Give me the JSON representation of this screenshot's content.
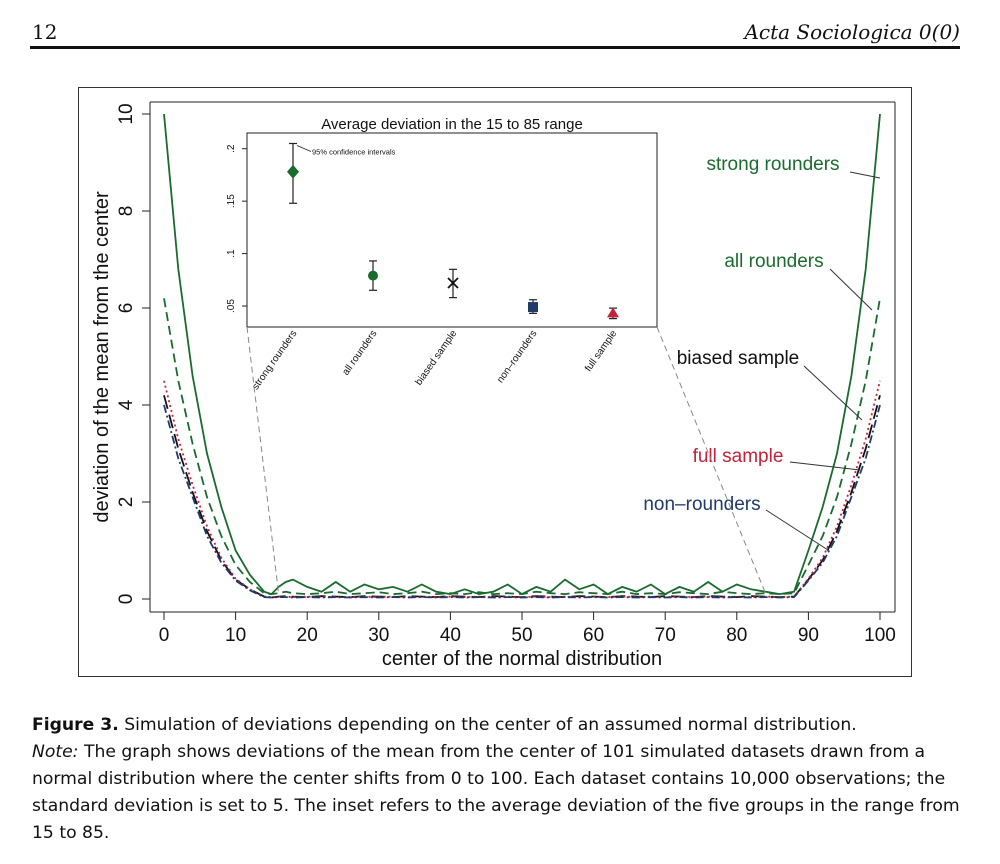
{
  "header": {
    "page_number": "12",
    "journal": "Acta Sociologica 0(0)"
  },
  "figure": {
    "label": "Figure 3.",
    "caption": "Simulation of deviations depending on the center of an assumed normal distribution.",
    "note_label": "Note:",
    "note": "The graph shows deviations of the mean from the center of 101 simulated datasets drawn from a normal distribution where the center shifts from 0 to 100. Each dataset contains 10,000 observations; the standard deviation is set to 5. The inset refers to the average deviation of the five groups in the range from 15 to 85."
  },
  "chart_data": [
    {
      "type": "line",
      "xlabel": "center of the normal distribution",
      "ylabel": "deviation of the mean from the center",
      "xlim": [
        0,
        100
      ],
      "ylim": [
        0,
        10
      ],
      "xticks": [
        0,
        10,
        20,
        30,
        40,
        50,
        60,
        70,
        80,
        90,
        100
      ],
      "yticks": [
        0,
        2,
        4,
        6,
        8,
        10
      ],
      "grid": false,
      "x": [
        0,
        2,
        4,
        6,
        8,
        10,
        12,
        14,
        15,
        16,
        17,
        18,
        20,
        22,
        24,
        26,
        28,
        30,
        32,
        34,
        36,
        38,
        40,
        42,
        44,
        46,
        48,
        50,
        52,
        54,
        56,
        58,
        60,
        62,
        64,
        66,
        68,
        70,
        72,
        74,
        76,
        78,
        80,
        82,
        84,
        86,
        88,
        90,
        92,
        94,
        96,
        98,
        100
      ],
      "series": [
        {
          "name": "strong rounders",
          "style": "solid",
          "color": "#1a6b2e",
          "values": [
            10,
            6.8,
            4.6,
            3.0,
            1.9,
            1.0,
            0.5,
            0.15,
            0.1,
            0.25,
            0.35,
            0.4,
            0.25,
            0.15,
            0.35,
            0.15,
            0.3,
            0.2,
            0.25,
            0.15,
            0.3,
            0.15,
            0.1,
            0.2,
            0.1,
            0.15,
            0.3,
            0.1,
            0.25,
            0.15,
            0.4,
            0.2,
            0.3,
            0.1,
            0.25,
            0.15,
            0.3,
            0.1,
            0.25,
            0.15,
            0.35,
            0.15,
            0.3,
            0.2,
            0.15,
            0.1,
            0.15,
            1.0,
            1.9,
            3.0,
            4.6,
            6.8,
            10
          ]
        },
        {
          "name": "all rounders",
          "style": "dashed",
          "color": "#1a6b2e",
          "values": [
            6.2,
            4.5,
            3.2,
            2.1,
            1.3,
            0.7,
            0.35,
            0.12,
            0.1,
            0.12,
            0.15,
            0.12,
            0.1,
            0.12,
            0.15,
            0.1,
            0.12,
            0.14,
            0.1,
            0.12,
            0.15,
            0.1,
            0.12,
            0.1,
            0.14,
            0.1,
            0.12,
            0.1,
            0.15,
            0.12,
            0.1,
            0.14,
            0.12,
            0.1,
            0.15,
            0.1,
            0.12,
            0.1,
            0.14,
            0.12,
            0.1,
            0.15,
            0.12,
            0.1,
            0.12,
            0.1,
            0.12,
            0.7,
            1.3,
            2.1,
            3.2,
            4.5,
            6.2
          ]
        },
        {
          "name": "biased sample",
          "style": "longdash",
          "color": "#111111",
          "values": [
            4.2,
            3.1,
            2.2,
            1.4,
            0.8,
            0.4,
            0.2,
            0.05,
            0.03,
            0.05,
            0.06,
            0.05,
            0.04,
            0.06,
            0.05,
            0.04,
            0.06,
            0.05,
            0.04,
            0.06,
            0.05,
            0.04,
            0.06,
            0.05,
            0.04,
            0.06,
            0.05,
            0.04,
            0.06,
            0.05,
            0.04,
            0.06,
            0.05,
            0.04,
            0.06,
            0.05,
            0.04,
            0.06,
            0.05,
            0.04,
            0.06,
            0.05,
            0.04,
            0.06,
            0.05,
            0.04,
            0.05,
            0.4,
            0.8,
            1.4,
            2.2,
            3.1,
            4.2
          ]
        },
        {
          "name": "full sample",
          "style": "dotted",
          "color": "#c4213a",
          "values": [
            4.5,
            3.3,
            2.35,
            1.5,
            0.85,
            0.42,
            0.2,
            0.05,
            0.04,
            0.05,
            0.05,
            0.04,
            0.05,
            0.04,
            0.05,
            0.04,
            0.05,
            0.04,
            0.05,
            0.04,
            0.05,
            0.04,
            0.05,
            0.04,
            0.05,
            0.04,
            0.05,
            0.04,
            0.05,
            0.04,
            0.05,
            0.04,
            0.05,
            0.04,
            0.05,
            0.04,
            0.05,
            0.04,
            0.05,
            0.04,
            0.05,
            0.04,
            0.05,
            0.04,
            0.05,
            0.04,
            0.05,
            0.42,
            0.85,
            1.5,
            2.35,
            3.3,
            4.5
          ]
        },
        {
          "name": "non–rounders",
          "style": "dashdot",
          "color": "#1f3a6b",
          "values": [
            4.0,
            2.9,
            2.1,
            1.3,
            0.75,
            0.38,
            0.18,
            0.04,
            0.03,
            0.04,
            0.04,
            0.03,
            0.04,
            0.03,
            0.04,
            0.03,
            0.04,
            0.03,
            0.04,
            0.03,
            0.04,
            0.03,
            0.04,
            0.03,
            0.04,
            0.03,
            0.04,
            0.03,
            0.04,
            0.03,
            0.04,
            0.03,
            0.04,
            0.03,
            0.04,
            0.03,
            0.04,
            0.03,
            0.04,
            0.03,
            0.04,
            0.03,
            0.04,
            0.03,
            0.04,
            0.03,
            0.04,
            0.38,
            0.75,
            1.3,
            2.1,
            2.9,
            4.0
          ]
        }
      ]
    },
    {
      "type": "scatter",
      "title": "Average deviation in the 15 to 85 range",
      "annotation": "95% confidence intervals",
      "categories": [
        "strong rounders",
        "all rounders",
        "biased sample",
        "non–rounders",
        "full sample"
      ],
      "yticks": [
        0.05,
        0.1,
        0.15,
        0.2
      ],
      "ytick_labels": [
        ".05",
        ".1",
        ".15",
        ".2"
      ],
      "ylim": [
        0.03,
        0.215
      ],
      "points": [
        {
          "category": "strong rounders",
          "value": 0.178,
          "ci": [
            0.148,
            0.205
          ],
          "marker": "diamond",
          "color": "#1a6b2e"
        },
        {
          "category": "all rounders",
          "value": 0.079,
          "ci": [
            0.065,
            0.093
          ],
          "marker": "circle",
          "color": "#1a6b2e"
        },
        {
          "category": "biased sample",
          "value": 0.072,
          "ci": [
            0.058,
            0.085
          ],
          "marker": "x",
          "color": "#111111"
        },
        {
          "category": "non–rounders",
          "value": 0.049,
          "ci": [
            0.043,
            0.056
          ],
          "marker": "square",
          "color": "#1f3a6b"
        },
        {
          "category": "full sample",
          "value": 0.043,
          "ci": [
            0.038,
            0.048
          ],
          "marker": "triangle",
          "color": "#c4213a"
        }
      ]
    }
  ]
}
